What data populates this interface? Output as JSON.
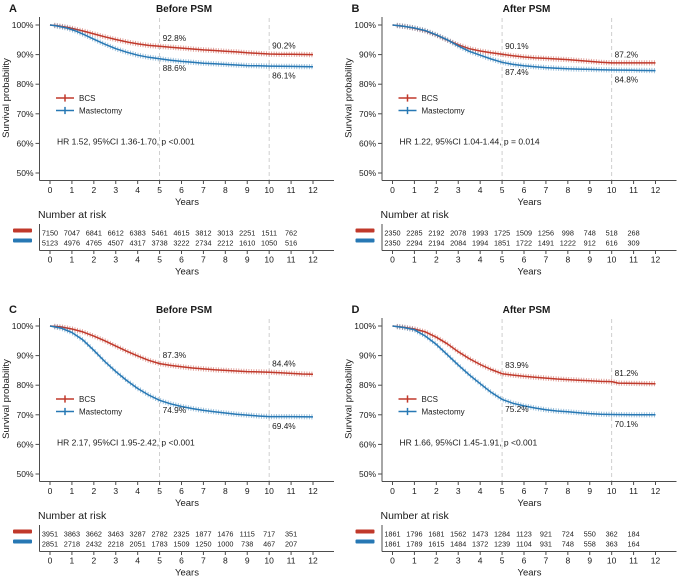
{
  "shared": {
    "ylabel": "Survival probability",
    "xlabel": "Years",
    "risk_header": "Number at risk",
    "legend": [
      {
        "name": "BCS",
        "color": "#c0392b"
      },
      {
        "name": "Mastectomy",
        "color": "#2778b4"
      }
    ],
    "y_ticks": [
      {
        "label": "100%",
        "value": 100
      },
      {
        "label": "90%",
        "value": 90
      },
      {
        "label": "80%",
        "value": 80
      },
      {
        "label": "70%",
        "value": 70
      },
      {
        "label": "60%",
        "value": 60
      },
      {
        "label": "50%",
        "value": 50
      }
    ],
    "x_ticks": [
      0,
      1,
      2,
      3,
      4,
      5,
      6,
      7,
      8,
      9,
      10,
      11,
      12
    ],
    "dashed_lines_x": [
      5,
      10
    ],
    "ylim": [
      50,
      100
    ],
    "xlim": [
      0,
      12
    ],
    "grid": "off",
    "legend_position": "inside-left"
  },
  "chart_data": [
    {
      "id": "A",
      "type": "line",
      "title": "Before PSM",
      "hr_text": "HR 1.52, 95%CI 1.36-1.70, p <0.001",
      "series": [
        {
          "name": "BCS",
          "color": "#c0392b",
          "points": [
            [
              0,
              100
            ],
            [
              0.3,
              99.8
            ],
            [
              0.8,
              99.2
            ],
            [
              1.2,
              98.5
            ],
            [
              1.6,
              97.8
            ],
            [
              2,
              97
            ],
            [
              2.5,
              96
            ],
            [
              3,
              95.1
            ],
            [
              3.5,
              94.3
            ],
            [
              4,
              93.6
            ],
            [
              4.5,
              93.1
            ],
            [
              5,
              92.8
            ],
            [
              5.5,
              92.5
            ],
            [
              6,
              92.2
            ],
            [
              6.5,
              91.9
            ],
            [
              7,
              91.6
            ],
            [
              7.5,
              91.4
            ],
            [
              8,
              91.1
            ],
            [
              8.5,
              90.9
            ],
            [
              9,
              90.6
            ],
            [
              9.5,
              90.4
            ],
            [
              10,
              90.2
            ],
            [
              10.5,
              90.1
            ],
            [
              11,
              90.1
            ],
            [
              12,
              90
            ]
          ]
        },
        {
          "name": "Mastectomy",
          "color": "#2778b4",
          "points": [
            [
              0,
              100
            ],
            [
              0.3,
              99.7
            ],
            [
              0.8,
              98.9
            ],
            [
              1.2,
              97.9
            ],
            [
              1.6,
              96.6
            ],
            [
              2,
              95.2
            ],
            [
              2.5,
              93.5
            ],
            [
              3,
              92
            ],
            [
              3.5,
              90.8
            ],
            [
              4,
              89.8
            ],
            [
              4.5,
              89.1
            ],
            [
              5,
              88.6
            ],
            [
              5.5,
              88.1
            ],
            [
              6,
              87.7
            ],
            [
              6.5,
              87.4
            ],
            [
              7,
              87.1
            ],
            [
              7.5,
              86.9
            ],
            [
              8,
              86.7
            ],
            [
              8.5,
              86.5
            ],
            [
              9,
              86.3
            ],
            [
              9.5,
              86.2
            ],
            [
              10,
              86.1
            ],
            [
              11,
              86
            ],
            [
              12,
              85.9
            ]
          ]
        }
      ],
      "annotations": [
        {
          "x": 5,
          "y": 92.8,
          "label": "92.8%",
          "placement": "above"
        },
        {
          "x": 10,
          "y": 90.2,
          "label": "90.2%",
          "placement": "above"
        },
        {
          "x": 5,
          "y": 88.6,
          "label": "88.6%",
          "placement": "below"
        },
        {
          "x": 10,
          "y": 86.1,
          "label": "86.1%",
          "placement": "below"
        }
      ],
      "number_at_risk": [
        {
          "name": "BCS",
          "color": "#c0392b",
          "values": [
            7150,
            7047,
            6841,
            6612,
            6383,
            5461,
            4615,
            3812,
            3013,
            2251,
            1511,
            762
          ]
        },
        {
          "name": "Mastectomy",
          "color": "#2778b4",
          "values": [
            5123,
            4976,
            4765,
            4507,
            4317,
            3738,
            3222,
            2734,
            2212,
            1610,
            1050,
            516
          ]
        }
      ]
    },
    {
      "id": "B",
      "type": "line",
      "title": "After PSM",
      "hr_text": "HR 1.22, 95%CI 1.04-1.44, p = 0.014",
      "series": [
        {
          "name": "BCS",
          "color": "#c0392b",
          "points": [
            [
              0,
              100
            ],
            [
              0.5,
              99.6
            ],
            [
              1,
              98.9
            ],
            [
              1.5,
              98
            ],
            [
              2,
              96.6
            ],
            [
              2.5,
              94.9
            ],
            [
              3,
              93.3
            ],
            [
              3.5,
              92
            ],
            [
              4,
              91.2
            ],
            [
              4.5,
              90.6
            ],
            [
              5,
              90.1
            ],
            [
              5.5,
              89.6
            ],
            [
              6,
              89.2
            ],
            [
              6.5,
              88.9
            ],
            [
              7,
              88.7
            ],
            [
              7.5,
              88.5
            ],
            [
              8,
              88.3
            ],
            [
              8.5,
              88
            ],
            [
              9,
              87.7
            ],
            [
              9.5,
              87.4
            ],
            [
              10,
              87.2
            ],
            [
              11,
              87.2
            ],
            [
              12,
              87.2
            ]
          ]
        },
        {
          "name": "Mastectomy",
          "color": "#2778b4",
          "points": [
            [
              0,
              100
            ],
            [
              0.5,
              99.6
            ],
            [
              1,
              99
            ],
            [
              1.5,
              98.1
            ],
            [
              2,
              96.7
            ],
            [
              2.5,
              95
            ],
            [
              3,
              92.9
            ],
            [
              3.5,
              91.1
            ],
            [
              4,
              89.8
            ],
            [
              4.5,
              88.5
            ],
            [
              5,
              87.4
            ],
            [
              5.5,
              86.7
            ],
            [
              6,
              86.2
            ],
            [
              6.5,
              85.9
            ],
            [
              7,
              85.6
            ],
            [
              7.5,
              85.4
            ],
            [
              8,
              85.2
            ],
            [
              8.5,
              85.1
            ],
            [
              9,
              85
            ],
            [
              9.5,
              84.9
            ],
            [
              10,
              84.8
            ],
            [
              11,
              84.7
            ],
            [
              12,
              84.6
            ]
          ]
        }
      ],
      "annotations": [
        {
          "x": 5,
          "y": 90.1,
          "label": "90.1%",
          "placement": "above"
        },
        {
          "x": 10,
          "y": 87.2,
          "label": "87.2%",
          "placement": "above"
        },
        {
          "x": 5,
          "y": 87.4,
          "label": "87.4%",
          "placement": "below"
        },
        {
          "x": 10,
          "y": 84.8,
          "label": "84.8%",
          "placement": "below"
        }
      ],
      "number_at_risk": [
        {
          "name": "BCS",
          "color": "#c0392b",
          "values": [
            2350,
            2285,
            2192,
            2078,
            1993,
            1725,
            1509,
            1256,
            998,
            748,
            518,
            268
          ]
        },
        {
          "name": "Mastectomy",
          "color": "#2778b4",
          "values": [
            2350,
            2294,
            2194,
            2084,
            1994,
            1851,
            1722,
            1491,
            1222,
            912,
            616,
            309
          ]
        }
      ]
    },
    {
      "id": "C",
      "type": "line",
      "title": "Before PSM",
      "hr_text": "HR 2.17, 95%CI 1.95-2.42, p <0.001",
      "series": [
        {
          "name": "BCS",
          "color": "#c0392b",
          "points": [
            [
              0,
              100
            ],
            [
              0.5,
              99.7
            ],
            [
              1,
              99
            ],
            [
              1.5,
              98
            ],
            [
              2,
              96.6
            ],
            [
              2.5,
              95
            ],
            [
              3,
              93.2
            ],
            [
              3.5,
              91.5
            ],
            [
              4,
              89.9
            ],
            [
              4.5,
              88.4
            ],
            [
              5,
              87.3
            ],
            [
              5.5,
              86.7
            ],
            [
              6,
              86.2
            ],
            [
              6.5,
              85.8
            ],
            [
              7,
              85.5
            ],
            [
              7.5,
              85.2
            ],
            [
              8,
              85
            ],
            [
              8.5,
              84.8
            ],
            [
              9,
              84.6
            ],
            [
              9.5,
              84.5
            ],
            [
              10,
              84.4
            ],
            [
              10.5,
              84.2
            ],
            [
              11,
              84
            ],
            [
              11.5,
              83.8
            ],
            [
              12,
              83.7
            ]
          ]
        },
        {
          "name": "Mastectomy",
          "color": "#2778b4",
          "points": [
            [
              0,
              100
            ],
            [
              0.5,
              99.3
            ],
            [
              1,
              97.8
            ],
            [
              1.5,
              95.3
            ],
            [
              2,
              91.8
            ],
            [
              2.5,
              88
            ],
            [
              3,
              84.6
            ],
            [
              3.5,
              81.6
            ],
            [
              4,
              78.9
            ],
            [
              4.5,
              76.7
            ],
            [
              5,
              74.9
            ],
            [
              5.5,
              73.7
            ],
            [
              6,
              72.8
            ],
            [
              6.5,
              72.1
            ],
            [
              7,
              71.5
            ],
            [
              7.5,
              71
            ],
            [
              8,
              70.6
            ],
            [
              8.5,
              70.2
            ],
            [
              9,
              69.9
            ],
            [
              9.5,
              69.6
            ],
            [
              10,
              69.4
            ],
            [
              11,
              69.4
            ],
            [
              12,
              69.3
            ]
          ]
        }
      ],
      "annotations": [
        {
          "x": 5,
          "y": 87.3,
          "label": "87.3%",
          "placement": "above"
        },
        {
          "x": 10,
          "y": 84.4,
          "label": "84.4%",
          "placement": "above"
        },
        {
          "x": 5,
          "y": 74.9,
          "label": "74.9%",
          "placement": "below"
        },
        {
          "x": 10,
          "y": 69.4,
          "label": "69.4%",
          "placement": "below"
        }
      ],
      "number_at_risk": [
        {
          "name": "BCS",
          "color": "#c0392b",
          "values": [
            3951,
            3863,
            3662,
            3463,
            3287,
            2782,
            2325,
            1877,
            1476,
            1115,
            717,
            351
          ]
        },
        {
          "name": "Mastectomy",
          "color": "#2778b4",
          "values": [
            2851,
            2718,
            2432,
            2218,
            2051,
            1783,
            1509,
            1250,
            1000,
            738,
            467,
            207
          ]
        }
      ]
    },
    {
      "id": "D",
      "type": "line",
      "title": "After PSM",
      "hr_text": "HR 1.66, 95%CI 1.45-1.91, p <0.001",
      "series": [
        {
          "name": "BCS",
          "color": "#c0392b",
          "points": [
            [
              0,
              100
            ],
            [
              0.5,
              99.6
            ],
            [
              1,
              99
            ],
            [
              1.5,
              98
            ],
            [
              2,
              96.2
            ],
            [
              2.5,
              94
            ],
            [
              3,
              91.3
            ],
            [
              3.5,
              89
            ],
            [
              4,
              87
            ],
            [
              4.5,
              85.3
            ],
            [
              5,
              83.9
            ],
            [
              5.5,
              83.4
            ],
            [
              6,
              83
            ],
            [
              6.5,
              82.7
            ],
            [
              7,
              82.4
            ],
            [
              7.5,
              82.1
            ],
            [
              8,
              81.9
            ],
            [
              8.5,
              81.7
            ],
            [
              9,
              81.5
            ],
            [
              9.5,
              81.3
            ],
            [
              10,
              81.2
            ],
            [
              10.3,
              80.7
            ],
            [
              11,
              80.6
            ],
            [
              12,
              80.5
            ]
          ]
        },
        {
          "name": "Mastectomy",
          "color": "#2778b4",
          "points": [
            [
              0,
              100
            ],
            [
              0.5,
              99.5
            ],
            [
              1,
              98.7
            ],
            [
              1.5,
              96.6
            ],
            [
              2,
              93.8
            ],
            [
              2.5,
              90.3
            ],
            [
              3,
              86.8
            ],
            [
              3.5,
              83.5
            ],
            [
              4,
              80.5
            ],
            [
              4.5,
              77.6
            ],
            [
              5,
              75.2
            ],
            [
              5.5,
              73.9
            ],
            [
              6,
              73
            ],
            [
              6.5,
              72.3
            ],
            [
              7,
              71.7
            ],
            [
              7.5,
              71.3
            ],
            [
              8,
              71
            ],
            [
              8.5,
              70.7
            ],
            [
              9,
              70.4
            ],
            [
              9.5,
              70.2
            ],
            [
              10,
              70.1
            ],
            [
              11,
              70
            ],
            [
              12,
              70
            ]
          ]
        }
      ],
      "annotations": [
        {
          "x": 5,
          "y": 83.9,
          "label": "83.9%",
          "placement": "above"
        },
        {
          "x": 10,
          "y": 81.2,
          "label": "81.2%",
          "placement": "above"
        },
        {
          "x": 5,
          "y": 75.2,
          "label": "75.2%",
          "placement": "below"
        },
        {
          "x": 10,
          "y": 70.1,
          "label": "70.1%",
          "placement": "below"
        }
      ],
      "number_at_risk": [
        {
          "name": "BCS",
          "color": "#c0392b",
          "values": [
            1861,
            1796,
            1681,
            1562,
            1473,
            1284,
            1123,
            921,
            724,
            550,
            362,
            184
          ]
        },
        {
          "name": "Mastectomy",
          "color": "#2778b4",
          "values": [
            1861,
            1789,
            1615,
            1484,
            1372,
            1239,
            1104,
            931,
            748,
            558,
            363,
            164
          ]
        }
      ]
    }
  ]
}
